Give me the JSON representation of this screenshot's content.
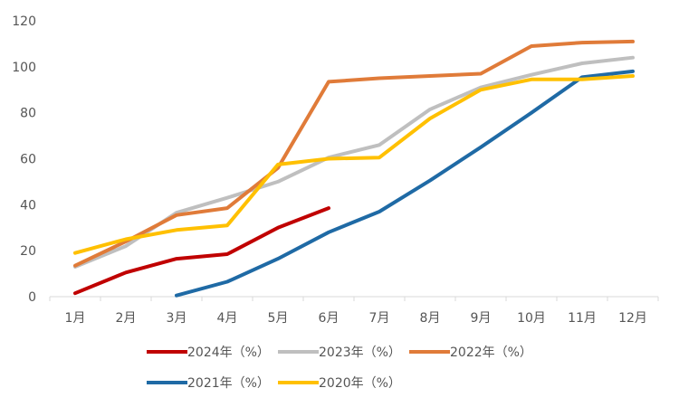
{
  "chart_data": {
    "type": "line",
    "title": "",
    "xlabel": "",
    "ylabel": "",
    "ylim": [
      0,
      120
    ],
    "yticks": [
      0,
      20,
      40,
      60,
      80,
      100,
      120
    ],
    "ytick_labels": [
      "0",
      "20",
      "40",
      "60",
      "80",
      "100",
      "120"
    ],
    "categories": [
      "1月",
      "2月",
      "3月",
      "4月",
      "5月",
      "6月",
      "7月",
      "8月",
      "9月",
      "10月",
      "11月",
      "12月"
    ],
    "grid": false,
    "legend_position": "bottom",
    "series": [
      {
        "name": "2024年（%）",
        "color": "#C00000",
        "values": [
          1.5,
          10.5,
          16.5,
          18.5,
          30,
          38.5,
          null,
          null,
          null,
          null,
          null,
          null
        ]
      },
      {
        "name": "2023年（%）",
        "color": "#BFBFBF",
        "values": [
          13,
          22,
          36.5,
          43,
          50,
          60.5,
          66,
          81.5,
          91,
          96.5,
          101.5,
          104
        ]
      },
      {
        "name": "2022年（%）",
        "color": "#E07B39",
        "values": [
          13.5,
          24,
          35.5,
          38.5,
          56,
          93.5,
          95,
          96,
          97,
          109,
          110.5,
          111
        ]
      },
      {
        "name": "2021年（%）",
        "color": "#1F6AA5",
        "values": [
          null,
          null,
          0.5,
          6.5,
          16.5,
          28,
          37,
          50.5,
          65,
          80,
          95.5,
          98
        ]
      },
      {
        "name": "2020年（%）",
        "color": "#FFC000",
        "values": [
          19,
          25,
          29,
          31,
          57.5,
          60,
          60.5,
          77.5,
          90,
          94.5,
          94.5,
          96
        ]
      }
    ]
  }
}
